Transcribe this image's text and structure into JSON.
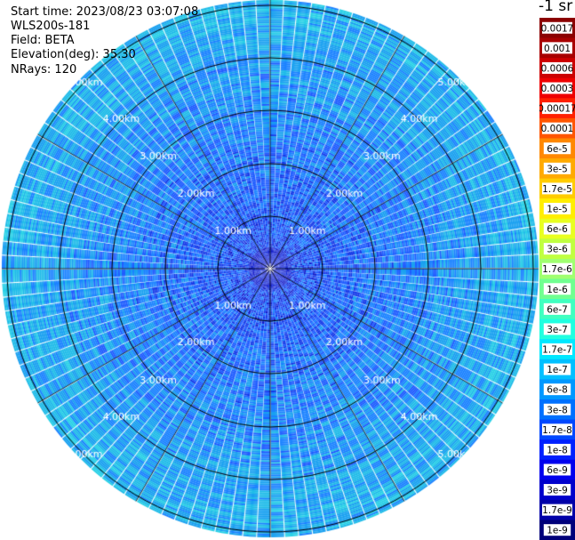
{
  "header": {
    "start_time": "Start time: 2023/08/23 03:07:08",
    "instrument": "WLS200s-181",
    "field": "Field: BETA",
    "elevation": "Elevation(deg): 35.30",
    "nrays": "NRays: 120",
    "unit": "-1 sr"
  },
  "range_rings": {
    "labels": [
      "1.00km",
      "2.00km",
      "3.00km",
      "4.00km",
      "5.00km"
    ]
  },
  "colorbar": {
    "labels": [
      "0.0017",
      "0.001",
      "0.0006",
      "0.0003",
      "0.00017",
      "0.0001",
      "6e-5",
      "3e-5",
      "1.7e-5",
      "1e-5",
      "6e-6",
      "3e-6",
      "1.7e-6",
      "1e-6",
      "6e-7",
      "3e-7",
      "1.7e-7",
      "1e-7",
      "6e-8",
      "3e-8",
      "1.7e-8",
      "1e-8",
      "6e-9",
      "3e-9",
      "1.7e-9",
      "1e-9"
    ],
    "colors": [
      "#8b0000",
      "#a80000",
      "#cc0000",
      "#ee0000",
      "#ff2000",
      "#ff5500",
      "#ff8800",
      "#ffaa00",
      "#ffcc00",
      "#ffee00",
      "#e8ff20",
      "#c0ff40",
      "#a0ff70",
      "#70ff90",
      "#40ffc0",
      "#20ffe0",
      "#00e8ff",
      "#00c0ff",
      "#0098ff",
      "#0070ff",
      "#0048ff",
      "#0020ff",
      "#0000ee",
      "#0000cc",
      "#0000a8",
      "#00007a"
    ]
  }
}
